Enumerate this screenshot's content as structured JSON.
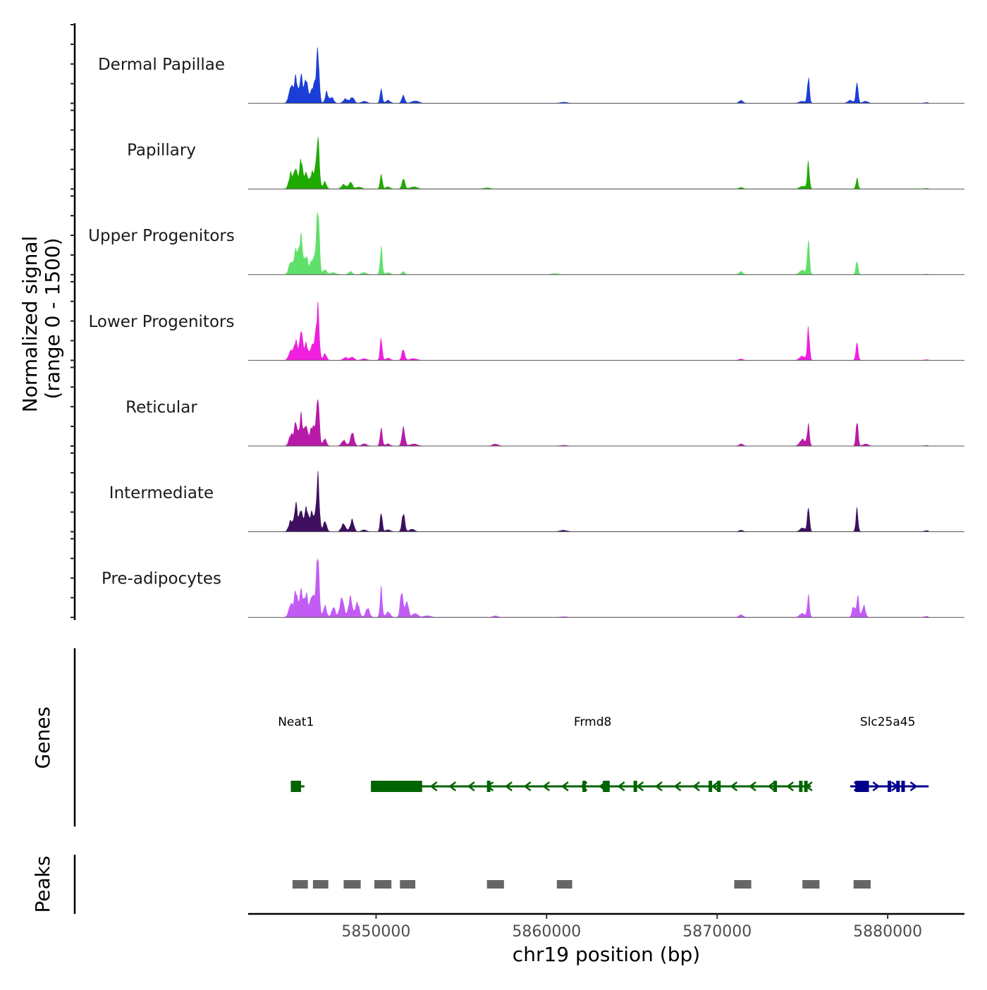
{
  "chart_data": {
    "type": "area",
    "title": "",
    "xlabel": "chr19 position (bp)",
    "ylabel": "Normalized signal\n(range 0 - 1500)",
    "ylabel_lines": [
      "Normalized signal",
      "(range 0 - 1500)"
    ],
    "y_range": [
      0,
      1500
    ],
    "xlim": [
      5842500,
      5884500
    ],
    "x_ticks": [
      5850000,
      5860000,
      5870000,
      5880000
    ],
    "x_tick_labels": [
      "5850000",
      "5860000",
      "5870000",
      "5880000"
    ],
    "tracks": [
      {
        "name": "Dermal Papillae",
        "color": "#1b3fd6",
        "peaks": [
          [
            5845000,
            500,
            120
          ],
          [
            5845300,
            700,
            100
          ],
          [
            5845600,
            820,
            90
          ],
          [
            5845900,
            650,
            110
          ],
          [
            5846200,
            280,
            90
          ],
          [
            5846600,
            1180,
            80
          ],
          [
            5846450,
            550,
            140
          ],
          [
            5847100,
            300,
            90
          ],
          [
            5847400,
            180,
            110
          ],
          [
            5848200,
            120,
            130
          ],
          [
            5848600,
            180,
            120
          ],
          [
            5849300,
            60,
            150
          ],
          [
            5850300,
            420,
            70
          ],
          [
            5850700,
            80,
            130
          ],
          [
            5851600,
            240,
            90
          ],
          [
            5852300,
            70,
            200
          ],
          [
            5861000,
            30,
            200
          ],
          [
            5871400,
            90,
            110
          ],
          [
            5875000,
            60,
            180
          ],
          [
            5875350,
            700,
            70
          ],
          [
            5877800,
            80,
            150
          ],
          [
            5878200,
            660,
            70
          ],
          [
            5878700,
            60,
            150
          ],
          [
            5882300,
            20,
            150
          ]
        ]
      },
      {
        "name": "Papillary",
        "color": "#1faa00",
        "peaks": [
          [
            5845000,
            420,
            120
          ],
          [
            5845300,
            620,
            100
          ],
          [
            5845600,
            800,
            90
          ],
          [
            5845900,
            500,
            110
          ],
          [
            5846200,
            300,
            90
          ],
          [
            5846600,
            1300,
            80
          ],
          [
            5846450,
            500,
            140
          ],
          [
            5847000,
            200,
            100
          ],
          [
            5848100,
            120,
            130
          ],
          [
            5848500,
            200,
            110
          ],
          [
            5849000,
            60,
            150
          ],
          [
            5850300,
            460,
            70
          ],
          [
            5850700,
            60,
            130
          ],
          [
            5851600,
            300,
            90
          ],
          [
            5852200,
            60,
            200
          ],
          [
            5856500,
            30,
            180
          ],
          [
            5871400,
            40,
            120
          ],
          [
            5875000,
            80,
            160
          ],
          [
            5875350,
            750,
            70
          ],
          [
            5878200,
            280,
            70
          ],
          [
            5882300,
            15,
            150
          ]
        ]
      },
      {
        "name": "Upper Progenitors",
        "color": "#5fe06a",
        "peaks": [
          [
            5845000,
            350,
            120
          ],
          [
            5845300,
            700,
            110
          ],
          [
            5845600,
            1100,
            100
          ],
          [
            5845900,
            500,
            110
          ],
          [
            5846200,
            240,
            100
          ],
          [
            5846600,
            1550,
            80
          ],
          [
            5846450,
            600,
            140
          ],
          [
            5847000,
            150,
            110
          ],
          [
            5847500,
            60,
            150
          ],
          [
            5848500,
            80,
            120
          ],
          [
            5849300,
            60,
            150
          ],
          [
            5850300,
            750,
            70
          ],
          [
            5850700,
            60,
            130
          ],
          [
            5851600,
            80,
            90
          ],
          [
            5860500,
            30,
            200
          ],
          [
            5871400,
            80,
            120
          ],
          [
            5875000,
            120,
            170
          ],
          [
            5875350,
            1050,
            70
          ],
          [
            5878200,
            380,
            70
          ],
          [
            5882300,
            15,
            150
          ]
        ]
      },
      {
        "name": "Lower Progenitors",
        "color": "#f01fdf",
        "peaks": [
          [
            5845000,
            300,
            120
          ],
          [
            5845300,
            520,
            100
          ],
          [
            5845600,
            900,
            90
          ],
          [
            5845900,
            450,
            110
          ],
          [
            5846200,
            300,
            90
          ],
          [
            5846600,
            1200,
            80
          ],
          [
            5846450,
            550,
            140
          ],
          [
            5847000,
            180,
            100
          ],
          [
            5848200,
            80,
            130
          ],
          [
            5848600,
            100,
            120
          ],
          [
            5849300,
            50,
            150
          ],
          [
            5850300,
            620,
            70
          ],
          [
            5850700,
            60,
            130
          ],
          [
            5851600,
            320,
            90
          ],
          [
            5852200,
            50,
            200
          ],
          [
            5871400,
            40,
            120
          ],
          [
            5875000,
            120,
            160
          ],
          [
            5875350,
            900,
            70
          ],
          [
            5878200,
            560,
            70
          ],
          [
            5882300,
            15,
            150
          ]
        ]
      },
      {
        "name": "Reticular",
        "color": "#b81aa8",
        "peaks": [
          [
            5845000,
            300,
            120
          ],
          [
            5845300,
            700,
            100
          ],
          [
            5845600,
            820,
            90
          ],
          [
            5845900,
            620,
            110
          ],
          [
            5846200,
            380,
            90
          ],
          [
            5846600,
            1200,
            80
          ],
          [
            5846450,
            520,
            140
          ],
          [
            5847000,
            200,
            100
          ],
          [
            5848100,
            150,
            130
          ],
          [
            5848600,
            380,
            110
          ],
          [
            5849300,
            60,
            150
          ],
          [
            5850300,
            570,
            70
          ],
          [
            5850700,
            60,
            130
          ],
          [
            5851600,
            560,
            90
          ],
          [
            5852200,
            60,
            200
          ],
          [
            5857000,
            60,
            150
          ],
          [
            5861000,
            20,
            200
          ],
          [
            5871400,
            60,
            120
          ],
          [
            5875000,
            200,
            150
          ],
          [
            5875350,
            600,
            70
          ],
          [
            5878200,
            700,
            70
          ],
          [
            5878700,
            60,
            150
          ],
          [
            5882300,
            15,
            150
          ]
        ]
      },
      {
        "name": "Intermediate",
        "color": "#3e0f5e",
        "peaks": [
          [
            5845000,
            300,
            120
          ],
          [
            5845300,
            780,
            100
          ],
          [
            5845600,
            600,
            90
          ],
          [
            5845900,
            700,
            110
          ],
          [
            5846200,
            420,
            90
          ],
          [
            5846600,
            1250,
            80
          ],
          [
            5846450,
            500,
            140
          ],
          [
            5847000,
            320,
            100
          ],
          [
            5848100,
            220,
            130
          ],
          [
            5848600,
            320,
            110
          ],
          [
            5849300,
            50,
            150
          ],
          [
            5850300,
            530,
            70
          ],
          [
            5850700,
            60,
            130
          ],
          [
            5851600,
            500,
            90
          ],
          [
            5852100,
            70,
            150
          ],
          [
            5861000,
            40,
            200
          ],
          [
            5871400,
            40,
            120
          ],
          [
            5875000,
            100,
            150
          ],
          [
            5875350,
            760,
            70
          ],
          [
            5878200,
            620,
            70
          ],
          [
            5882300,
            30,
            150
          ]
        ]
      },
      {
        "name": "Pre-adipocytes",
        "color": "#c25cf5",
        "peaks": [
          [
            5845000,
            400,
            120
          ],
          [
            5845300,
            700,
            100
          ],
          [
            5845600,
            880,
            90
          ],
          [
            5845900,
            640,
            110
          ],
          [
            5846200,
            500,
            90
          ],
          [
            5846600,
            1400,
            80
          ],
          [
            5846450,
            600,
            140
          ],
          [
            5847000,
            320,
            100
          ],
          [
            5847500,
            300,
            110
          ],
          [
            5848000,
            600,
            120
          ],
          [
            5848500,
            580,
            110
          ],
          [
            5848900,
            400,
            120
          ],
          [
            5849500,
            250,
            120
          ],
          [
            5850300,
            820,
            70
          ],
          [
            5850700,
            150,
            130
          ],
          [
            5851500,
            700,
            90
          ],
          [
            5851800,
            480,
            100
          ],
          [
            5852300,
            120,
            150
          ],
          [
            5853000,
            50,
            200
          ],
          [
            5857000,
            40,
            150
          ],
          [
            5861000,
            20,
            200
          ],
          [
            5871400,
            80,
            120
          ],
          [
            5875000,
            110,
            160
          ],
          [
            5875350,
            580,
            70
          ],
          [
            5878000,
            300,
            90
          ],
          [
            5878250,
            680,
            70
          ],
          [
            5878600,
            320,
            100
          ],
          [
            5882300,
            30,
            150
          ]
        ]
      }
    ],
    "genes": {
      "title": "Genes",
      "items": [
        {
          "name": "Neat1",
          "start": 5845000,
          "end": 5845800,
          "strand": "-",
          "color": "#006400",
          "label_x": 5845300,
          "exons": [
            [
              5845000,
              5845600
            ]
          ]
        },
        {
          "name": "Frmd8",
          "start": 5849700,
          "end": 5875500,
          "strand": "-",
          "color": "#006400",
          "label_x": 5862700,
          "exons": [
            [
              5849700,
              5852700
            ],
            [
              5856500,
              5856650
            ],
            [
              5862100,
              5862300
            ],
            [
              5863300,
              5863700
            ],
            [
              5865100,
              5865300
            ],
            [
              5869500,
              5869700
            ],
            [
              5870000,
              5870200
            ],
            [
              5873300,
              5873500
            ],
            [
              5874800,
              5874900
            ],
            [
              5875100,
              5875250
            ]
          ]
        },
        {
          "name": "Slc25a45",
          "start": 5877800,
          "end": 5882400,
          "strand": "+",
          "color": "#00008b",
          "label_x": 5880000,
          "exons": [
            [
              5878100,
              5878900
            ],
            [
              5880000,
              5880100
            ],
            [
              5880500,
              5880600
            ],
            [
              5880800,
              5881000
            ]
          ]
        }
      ]
    },
    "peaks_track": {
      "title": "Peaks",
      "color": "#666666",
      "regions": [
        [
          5845100,
          5846000
        ],
        [
          5846300,
          5847200
        ],
        [
          5848100,
          5849100
        ],
        [
          5849900,
          5850900
        ],
        [
          5851400,
          5852300
        ],
        [
          5856500,
          5857500
        ],
        [
          5860600,
          5861500
        ],
        [
          5871000,
          5872000
        ],
        [
          5875000,
          5876000
        ],
        [
          5878000,
          5879000
        ]
      ]
    }
  }
}
